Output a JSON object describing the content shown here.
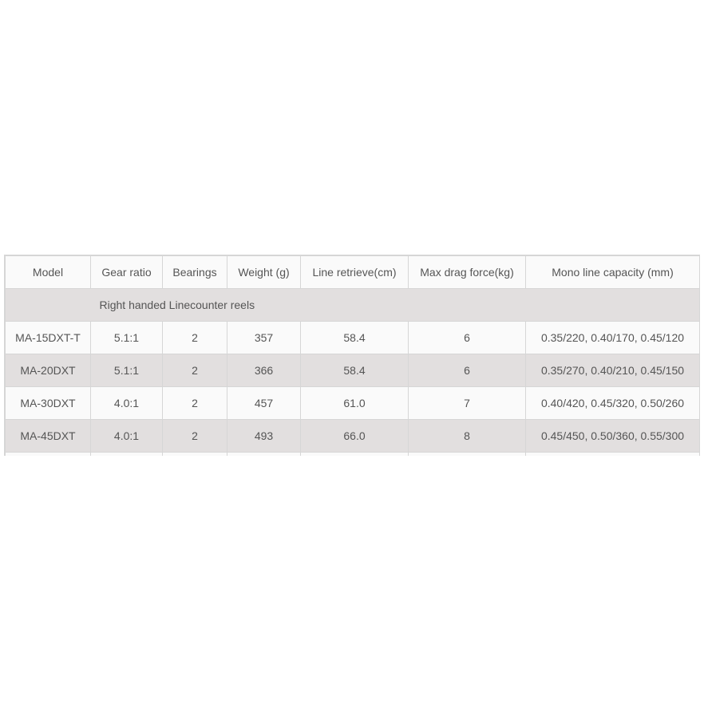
{
  "table": {
    "headers": [
      "Model",
      "Gear ratio",
      "Bearings",
      "Weight (g)",
      "Line retrieve(cm)",
      "Max drag force(kg)",
      "Mono line capacity (mm)"
    ],
    "section_label": "Right handed Linecounter reels",
    "rows": [
      [
        "MA-15DXT-T",
        "5.1:1",
        "2",
        "357",
        "58.4",
        "6",
        "0.35/220, 0.40/170, 0.45/120"
      ],
      [
        "MA-20DXT",
        "5.1:1",
        "2",
        "366",
        "58.4",
        "6",
        "0.35/270, 0.40/210, 0.45/150"
      ],
      [
        "MA-30DXT",
        "4.0:1",
        "2",
        "457",
        "61.0",
        "7",
        "0.40/420, 0.45/320, 0.50/260"
      ],
      [
        "MA-45DXT",
        "4.0:1",
        "2",
        "493",
        "66.0",
        "8",
        "0.45/450, 0.50/360, 0.55/300"
      ]
    ]
  },
  "colors": {
    "text": "#555555",
    "stripe": "#e2dfdf",
    "row": "#fafafa",
    "border": "#d6d6d6"
  }
}
